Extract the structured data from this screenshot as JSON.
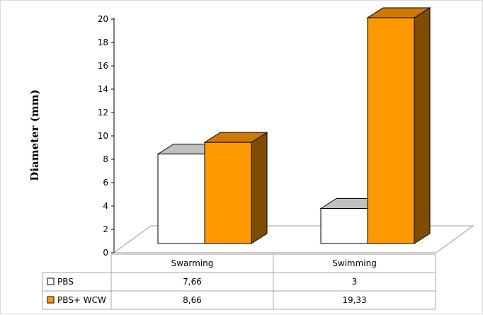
{
  "chart_data": {
    "type": "bar",
    "title": "",
    "xlabel": "",
    "ylabel": "Diameter (mm)",
    "ylim": [
      0,
      20
    ],
    "yticks": [
      "0",
      "2",
      "4",
      "6",
      "8",
      "10",
      "12",
      "14",
      "16",
      "18",
      "20"
    ],
    "categories": [
      "Swarming",
      "Swimming"
    ],
    "series": [
      {
        "name": "PBS",
        "values": [
          7.66,
          3
        ],
        "labels": [
          "7,66",
          "3"
        ],
        "color": "#ffffff",
        "top": "#c0c0c0",
        "side": "#c8c8c8"
      },
      {
        "name": "PBS+ WCW",
        "values": [
          8.66,
          19.33
        ],
        "labels": [
          "8,66",
          "19,33"
        ],
        "color": "#ff9900",
        "top": "#cc7a00",
        "side": "#7f4c00"
      }
    ],
    "grid": false,
    "legend": "table-below"
  }
}
